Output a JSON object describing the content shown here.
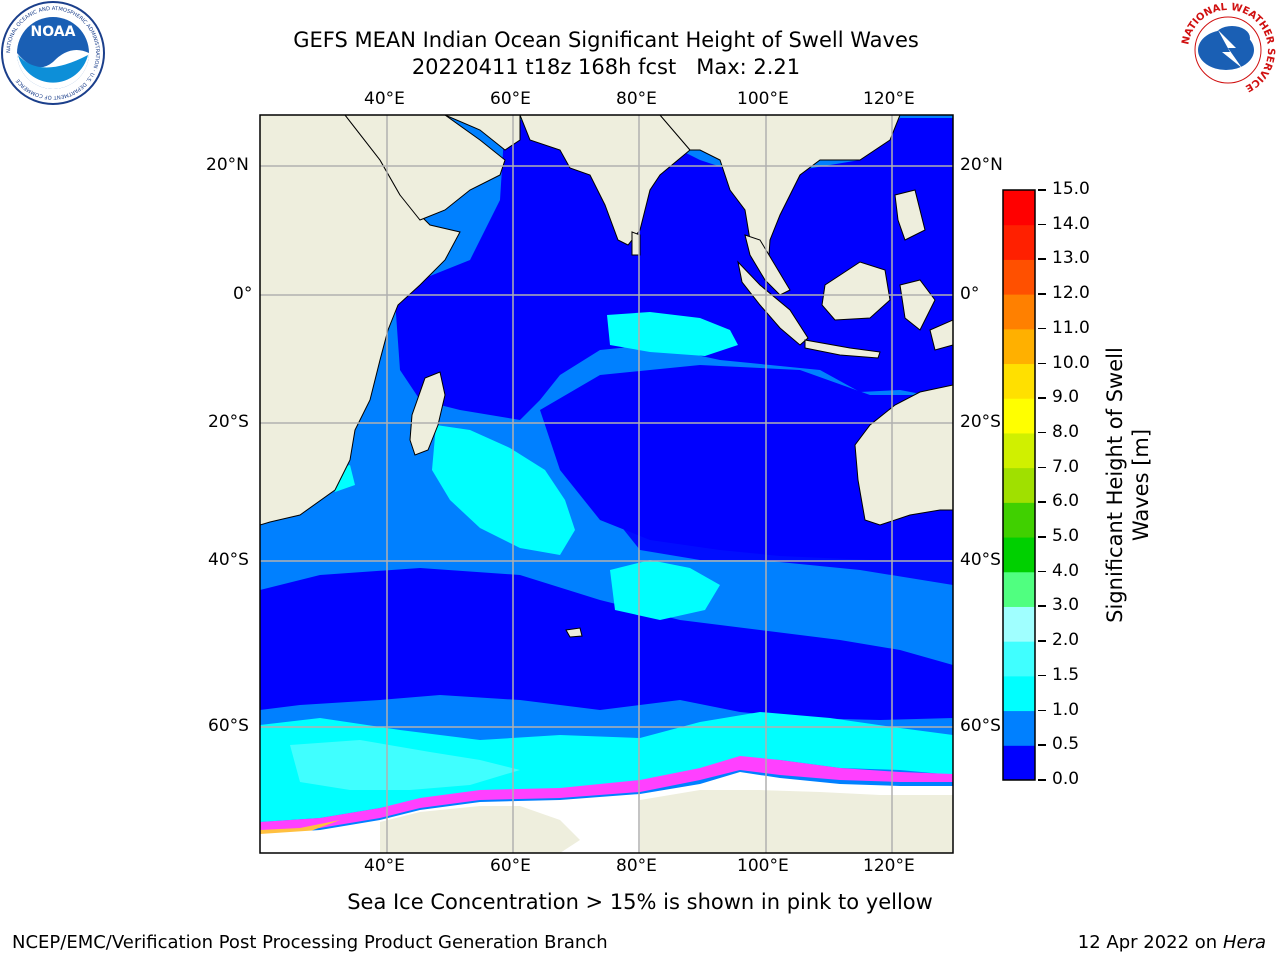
{
  "header": {
    "title_line1": "GEFS MEAN Indian Ocean Significant Height of Swell Waves",
    "title_line2": "20220411 t18z 168h fcst   Max: 2.21"
  },
  "logos": {
    "noaa": {
      "icon": "noaa-logo-icon",
      "text": "NOAA",
      "ring_text": "NATIONAL OCEANIC AND ATMOSPHERIC ADMINISTRATION · U.S. DEPARTMENT OF COMMERCE"
    },
    "nws": {
      "icon": "nws-logo-icon",
      "ring_text": "NATIONAL WEATHER SERVICE"
    }
  },
  "map": {
    "lon_ticks_top": [
      "40°E",
      "60°E",
      "80°E",
      "100°E",
      "120°E"
    ],
    "lon_ticks_bottom": [
      "40°E",
      "60°E",
      "80°E",
      "100°E",
      "120°E"
    ],
    "lat_ticks_left": [
      "20°N",
      "0°",
      "20°S",
      "40°S",
      "60°S"
    ],
    "lat_ticks_right": [
      "20°N",
      "0°",
      "20°S",
      "40°S",
      "60°S"
    ],
    "colors": {
      "land": "#eeeedd",
      "swell_0_0.5": "#0000ff",
      "swell_0.5_1.0": "#0080ff",
      "swell_1.0_1.5": "#00ffff",
      "swell_1.5_2.0": "#40ffff",
      "ice_high": "#ffffff",
      "ice_edge": "#ff40ff"
    }
  },
  "colorbar": {
    "label": "Significant Height of Swell Waves [m]",
    "ticks": [
      "0.0",
      "0.5",
      "1.0",
      "1.5",
      "2.0",
      "3.0",
      "4.0",
      "5.0",
      "6.0",
      "7.0",
      "8.0",
      "9.0",
      "10.0",
      "11.0",
      "12.0",
      "13.0",
      "14.0",
      "15.0"
    ],
    "colors": [
      "#0000ff",
      "#0080ff",
      "#00ffff",
      "#40ffff",
      "#a0ffff",
      "#50ff80",
      "#00d000",
      "#40d000",
      "#a0e000",
      "#d0f000",
      "#ffff00",
      "#ffe000",
      "#ffb000",
      "#ff8000",
      "#ff5000",
      "#ff2000",
      "#ff0000"
    ]
  },
  "notes": {
    "ice": "Sea Ice Concentration > 15% is shown in pink to yellow"
  },
  "footer": {
    "left": "NCEP/EMC/Verification Post Processing Product Generation Branch",
    "right_prefix": "12 Apr 2022 on ",
    "right_machine": "Hera"
  }
}
